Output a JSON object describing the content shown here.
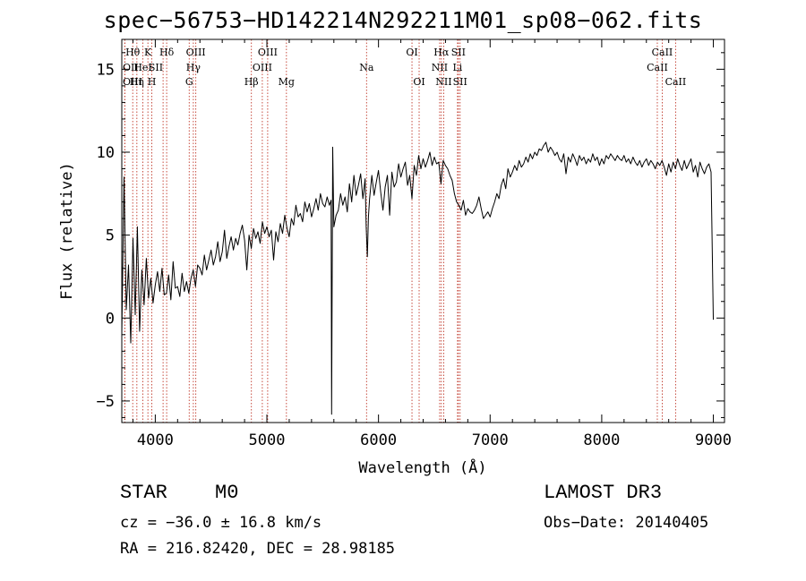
{
  "title": "spec−56753−HD142214N292211M01_sp08−062.fits",
  "footer": {
    "object_class": "STAR",
    "subclass": "M0",
    "survey": "LAMOST DR3",
    "redshift": "cz = −36.0 ± 16.8 km/s",
    "obs_date": "Obs−Date: 20140405",
    "coords": "RA = 216.82420, DEC =  28.98185"
  },
  "chart_data": {
    "type": "line",
    "title": "spec−56753−HD142214N292211M01_sp08−062.fits",
    "xlabel": "Wavelength (Å)",
    "ylabel": "Flux (relative)",
    "xlim": [
      3700,
      9100
    ],
    "ylim": [
      -6.3,
      16.8
    ],
    "x_ticks": [
      4000,
      5000,
      6000,
      7000,
      8000,
      9000
    ],
    "y_ticks": [
      -5,
      0,
      5,
      10,
      15
    ],
    "series": [
      {
        "name": "flux",
        "x": [
          3700,
          3720,
          3740,
          3760,
          3780,
          3800,
          3820,
          3840,
          3860,
          3880,
          3900,
          3920,
          3940,
          3960,
          3980,
          4000,
          4020,
          4040,
          4060,
          4080,
          4100,
          4120,
          4140,
          4160,
          4180,
          4200,
          4220,
          4240,
          4260,
          4280,
          4300,
          4320,
          4340,
          4360,
          4380,
          4400,
          4420,
          4440,
          4460,
          4480,
          4500,
          4520,
          4540,
          4560,
          4580,
          4600,
          4620,
          4640,
          4660,
          4680,
          4700,
          4720,
          4740,
          4760,
          4780,
          4800,
          4820,
          4840,
          4860,
          4880,
          4900,
          4920,
          4940,
          4960,
          4980,
          5000,
          5020,
          5040,
          5060,
          5080,
          5100,
          5120,
          5140,
          5160,
          5180,
          5200,
          5220,
          5240,
          5260,
          5280,
          5300,
          5320,
          5340,
          5360,
          5380,
          5400,
          5420,
          5440,
          5460,
          5480,
          5500,
          5520,
          5540,
          5560,
          5575,
          5580,
          5590,
          5600,
          5620,
          5640,
          5660,
          5680,
          5700,
          5720,
          5740,
          5760,
          5780,
          5800,
          5820,
          5840,
          5860,
          5880,
          5890,
          5900,
          5910,
          5920,
          5940,
          5960,
          5980,
          6000,
          6020,
          6040,
          6060,
          6080,
          6100,
          6120,
          6140,
          6160,
          6180,
          6200,
          6220,
          6240,
          6260,
          6280,
          6300,
          6320,
          6340,
          6360,
          6380,
          6400,
          6420,
          6440,
          6460,
          6480,
          6500,
          6520,
          6540,
          6560,
          6580,
          6600,
          6620,
          6640,
          6660,
          6680,
          6700,
          6720,
          6740,
          6760,
          6780,
          6800,
          6820,
          6840,
          6860,
          6880,
          6900,
          6920,
          6940,
          6960,
          6980,
          7000,
          7020,
          7040,
          7060,
          7080,
          7100,
          7120,
          7140,
          7160,
          7180,
          7200,
          7220,
          7240,
          7260,
          7280,
          7300,
          7320,
          7340,
          7360,
          7380,
          7400,
          7420,
          7440,
          7460,
          7480,
          7500,
          7520,
          7540,
          7560,
          7580,
          7600,
          7620,
          7640,
          7660,
          7680,
          7700,
          7720,
          7740,
          7760,
          7780,
          7800,
          7820,
          7840,
          7860,
          7880,
          7900,
          7920,
          7940,
          7960,
          7980,
          8000,
          8020,
          8040,
          8060,
          8080,
          8100,
          8120,
          8140,
          8160,
          8180,
          8200,
          8220,
          8240,
          8260,
          8280,
          8300,
          8320,
          8340,
          8360,
          8380,
          8400,
          8420,
          8440,
          8460,
          8480,
          8500,
          8520,
          8540,
          8560,
          8580,
          8600,
          8620,
          8640,
          8660,
          8680,
          8700,
          8720,
          8740,
          8760,
          8780,
          8800,
          8820,
          8840,
          8860,
          8880,
          8900,
          8920,
          8940,
          8960,
          8980,
          9000
        ],
        "y": [
          -1.0,
          8.5,
          0.5,
          3.2,
          -1.5,
          4.8,
          0.2,
          5.5,
          -0.8,
          2.9,
          0.8,
          3.6,
          1.2,
          2.4,
          0.9,
          2.0,
          2.8,
          1.6,
          3.0,
          1.4,
          1.5,
          2.6,
          1.1,
          3.4,
          1.8,
          1.9,
          1.3,
          2.7,
          1.6,
          2.2,
          1.5,
          2.4,
          2.9,
          1.9,
          3.2,
          3.0,
          2.6,
          3.8,
          2.9,
          3.5,
          4.1,
          3.2,
          3.7,
          4.6,
          3.4,
          4.0,
          5.3,
          3.6,
          4.3,
          4.9,
          4.1,
          4.8,
          4.4,
          5.1,
          5.6,
          4.7,
          2.9,
          5.0,
          4.2,
          5.4,
          4.8,
          5.2,
          4.5,
          5.8,
          5.1,
          5.5,
          4.9,
          5.3,
          3.5,
          5.2,
          4.6,
          5.7,
          5.1,
          6.2,
          5.4,
          4.9,
          6.0,
          5.6,
          6.8,
          6.1,
          6.3,
          5.8,
          7.0,
          6.4,
          6.9,
          6.1,
          6.6,
          7.2,
          6.5,
          7.5,
          6.9,
          6.7,
          7.3,
          6.8,
          7.1,
          -5.8,
          10.3,
          5.5,
          6.2,
          6.5,
          7.5,
          6.8,
          7.3,
          6.4,
          8.1,
          7.0,
          8.6,
          7.4,
          8.0,
          8.7,
          7.2,
          8.4,
          5.5,
          3.7,
          6.1,
          7.2,
          8.6,
          7.4,
          8.2,
          8.9,
          7.6,
          6.5,
          7.9,
          8.6,
          6.2,
          8.8,
          7.9,
          8.2,
          9.3,
          8.5,
          9.0,
          9.4,
          8.0,
          8.6,
          7.2,
          9.2,
          8.6,
          9.8,
          9.0,
          9.6,
          9.1,
          9.5,
          10.0,
          9.2,
          9.7,
          9.3,
          9.4,
          8.1,
          9.5,
          9.2,
          9.0,
          8.6,
          8.3,
          7.5,
          7.0,
          6.8,
          6.5,
          7.1,
          6.2,
          6.6,
          6.4,
          6.3,
          6.5,
          6.8,
          7.3,
          6.6,
          6.0,
          6.2,
          6.4,
          6.1,
          6.6,
          7.0,
          7.5,
          7.2,
          8.0,
          8.4,
          7.8,
          9.0,
          8.5,
          8.8,
          9.2,
          8.9,
          9.5,
          9.1,
          9.3,
          9.7,
          9.4,
          9.9,
          9.6,
          10.0,
          9.8,
          10.2,
          10.1,
          10.4,
          10.6,
          10.0,
          10.3,
          10.1,
          9.8,
          10.0,
          9.6,
          9.4,
          9.9,
          8.7,
          9.7,
          9.4,
          9.9,
          9.6,
          9.2,
          9.8,
          9.5,
          9.7,
          9.3,
          9.6,
          9.4,
          9.9,
          9.5,
          9.7,
          9.2,
          9.6,
          9.3,
          9.8,
          9.6,
          9.9,
          9.7,
          9.5,
          9.8,
          9.6,
          9.5,
          9.8,
          9.4,
          9.6,
          9.3,
          9.7,
          9.4,
          9.2,
          9.5,
          9.1,
          9.4,
          9.6,
          9.2,
          9.5,
          9.3,
          9.0,
          9.4,
          9.2,
          9.5,
          9.1,
          8.6,
          9.3,
          8.8,
          9.4,
          9.0,
          9.6,
          9.2,
          8.9,
          9.5,
          9.0,
          9.3,
          9.6,
          8.8,
          9.2,
          8.5,
          9.4,
          9.0,
          8.7,
          9.1,
          9.3,
          8.8,
          -0.1
        ]
      }
    ],
    "spectral_lines": [
      {
        "label": "Hθ",
        "x": 3798,
        "row": 1,
        "align": "middle"
      },
      {
        "label": "OII",
        "x": 3727,
        "row": 2,
        "align": "start"
      },
      {
        "label": "OIII",
        "x": 3727,
        "row": 3,
        "align": "start"
      },
      {
        "label": "Hη",
        "x": 3835,
        "row": 3,
        "align": "middle"
      },
      {
        "label": "K",
        "x": 3934,
        "row": 1,
        "align": "middle"
      },
      {
        "label": "HeI",
        "x": 3889,
        "row": 2,
        "align": "middle"
      },
      {
        "label": "SII",
        "x": 4070,
        "row": 2,
        "align": "end"
      },
      {
        "label": "H",
        "x": 3969,
        "row": 3,
        "align": "middle"
      },
      {
        "label": "Hδ",
        "x": 4102,
        "row": 1,
        "align": "middle"
      },
      {
        "label": "OIII",
        "x": 4363,
        "row": 1,
        "align": "middle"
      },
      {
        "label": "Hγ",
        "x": 4341,
        "row": 2,
        "align": "middle"
      },
      {
        "label": "G",
        "x": 4304,
        "row": 3,
        "align": "middle"
      },
      {
        "label": "Hβ",
        "x": 4861,
        "row": 3,
        "align": "middle"
      },
      {
        "label": "OIII",
        "x": 5007,
        "row": 1,
        "align": "middle"
      },
      {
        "label": "OIII",
        "x": 4959,
        "row": 2,
        "align": "middle"
      },
      {
        "label": "Mg",
        "x": 5175,
        "row": 3,
        "align": "middle"
      },
      {
        "label": "Na",
        "x": 5893,
        "row": 2,
        "align": "middle"
      },
      {
        "label": "OI",
        "x": 6300,
        "row": 1,
        "align": "middle"
      },
      {
        "label": "OI",
        "x": 6364,
        "row": 3,
        "align": "middle"
      },
      {
        "label": "Hα",
        "x": 6563,
        "row": 1,
        "align": "middle"
      },
      {
        "label": "SII",
        "x": 6716,
        "row": 1,
        "align": "middle"
      },
      {
        "label": "NII",
        "x": 6548,
        "row": 2,
        "align": "middle"
      },
      {
        "label": "Li",
        "x": 6708,
        "row": 2,
        "align": "middle"
      },
      {
        "label": "NII",
        "x": 6584,
        "row": 3,
        "align": "middle"
      },
      {
        "label": "SII",
        "x": 6731,
        "row": 3,
        "align": "middle"
      },
      {
        "label": "CaII",
        "x": 8542,
        "row": 1,
        "align": "middle"
      },
      {
        "label": "CaII",
        "x": 8498,
        "row": 2,
        "align": "middle"
      },
      {
        "label": "CaII",
        "x": 8662,
        "row": 3,
        "align": "middle"
      }
    ]
  }
}
